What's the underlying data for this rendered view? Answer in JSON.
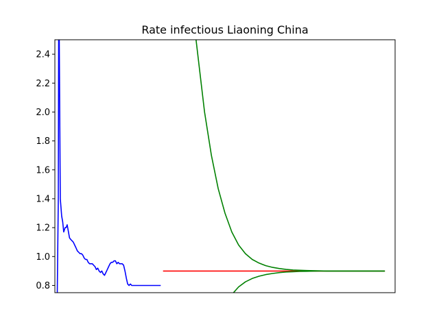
{
  "chart_data": {
    "type": "line",
    "title": "Rate infectious Liaoning China",
    "xlabel": "",
    "ylabel": "",
    "ylim": [
      0.75,
      2.5
    ],
    "xlim": [
      0,
      100
    ],
    "x_ticks_visible": false,
    "grid": false,
    "yticks": [
      "0.8",
      "1.0",
      "1.2",
      "1.4",
      "1.6",
      "1.8",
      "2.0",
      "2.2",
      "2.4"
    ],
    "series": [
      {
        "color": "#0000ff",
        "x": [
          0.7,
          1.0,
          1.1,
          1.3,
          1.6,
          2.0,
          2.3,
          2.6,
          3.0,
          3.3,
          3.6,
          4.0,
          4.3,
          4.6,
          5.0,
          5.4,
          5.8,
          6.2,
          6.6,
          7.0,
          7.4,
          7.8,
          8.2,
          8.6,
          9.0,
          9.4,
          9.8,
          10.2,
          10.6,
          11.0,
          11.4,
          11.8,
          12.2,
          12.6,
          13.0,
          13.4,
          13.8,
          14.2,
          14.6,
          15.0,
          15.4,
          15.8,
          16.2,
          16.6,
          17.0,
          17.4,
          17.8,
          18.2,
          18.6,
          19.0,
          19.4,
          19.8,
          20.2,
          20.6,
          21.0,
          21.4,
          21.8,
          22.2,
          22.6,
          23.0,
          23.4,
          23.8,
          24.2,
          24.6,
          25.0,
          25.4,
          25.8,
          26.2,
          26.6,
          27.0,
          27.4,
          27.8,
          28.2,
          28.6,
          29.0,
          29.4,
          29.8,
          30.2,
          30.6,
          31.1
        ],
        "values": [
          0.75,
          1.4,
          2.5,
          2.5,
          1.4,
          1.28,
          1.24,
          1.17,
          1.2,
          1.2,
          1.22,
          1.17,
          1.13,
          1.12,
          1.11,
          1.1,
          1.08,
          1.06,
          1.04,
          1.03,
          1.02,
          1.02,
          1.01,
          0.99,
          0.98,
          0.98,
          0.96,
          0.95,
          0.95,
          0.95,
          0.94,
          0.93,
          0.91,
          0.92,
          0.9,
          0.89,
          0.9,
          0.88,
          0.87,
          0.89,
          0.91,
          0.93,
          0.95,
          0.96,
          0.96,
          0.97,
          0.97,
          0.95,
          0.96,
          0.95,
          0.95,
          0.95,
          0.94,
          0.9,
          0.85,
          0.81,
          0.8,
          0.81,
          0.8,
          0.8,
          0.8,
          0.8,
          0.8,
          0.8,
          0.8,
          0.8,
          0.8,
          0.8,
          0.8,
          0.8,
          0.8,
          0.8,
          0.8,
          0.8,
          0.8,
          0.8,
          0.8,
          0.8,
          0.8,
          0.8
        ]
      },
      {
        "color": "#ff0000",
        "x": [
          31.8,
          60,
          97
        ],
        "values": [
          0.9,
          0.9,
          0.9
        ]
      },
      {
        "color": "#008000",
        "x": [
          41.5,
          44,
          46,
          48,
          50,
          52,
          54,
          56,
          58,
          60,
          62,
          64,
          66,
          68,
          70,
          72,
          74,
          76,
          78,
          80,
          84,
          88,
          92,
          97
        ],
        "values": [
          2.5,
          2.0,
          1.7,
          1.47,
          1.3,
          1.17,
          1.08,
          1.02,
          0.98,
          0.955,
          0.937,
          0.925,
          0.917,
          0.911,
          0.907,
          0.905,
          0.903,
          0.902,
          0.901,
          0.9,
          0.9,
          0.9,
          0.9,
          0.9
        ]
      },
      {
        "color": "#008000",
        "x": [
          52.5,
          54,
          56,
          58,
          60,
          62,
          64,
          66,
          68,
          70,
          72,
          74,
          76,
          78,
          80,
          84,
          88,
          92,
          97
        ],
        "values": [
          0.75,
          0.79,
          0.825,
          0.848,
          0.864,
          0.875,
          0.883,
          0.889,
          0.893,
          0.895,
          0.897,
          0.898,
          0.899,
          0.9,
          0.9,
          0.9,
          0.9,
          0.9,
          0.9
        ]
      }
    ]
  }
}
